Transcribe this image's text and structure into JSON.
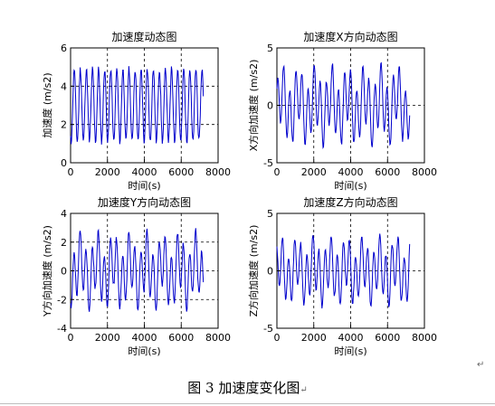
{
  "figure": {
    "caption": "图 3  加速度变化图",
    "caption_mark": "↵",
    "para_mark": "↵"
  },
  "chart_data": [
    {
      "type": "line",
      "title": "加速度动态图",
      "xlabel": "时间(s)",
      "ylabel": "加速度 (m/s2)",
      "xlim": [
        0,
        8000
      ],
      "ylim": [
        0,
        6
      ],
      "xticks": [
        0,
        2000,
        4000,
        6000,
        8000
      ],
      "yticks": [
        0,
        2,
        4,
        6
      ],
      "grid": "dashed",
      "line_color": "#0000cc",
      "x_end": 7200,
      "period": 330,
      "offset": 3.0,
      "wave": [
        1.9,
        0.0
      ],
      "samples_per_period": 12,
      "seed": 11
    },
    {
      "type": "line",
      "title": "加速度X方向动态图",
      "xlabel": "时间(s)",
      "ylabel": "X方向加速度 (m/s2)",
      "xlim": [
        0,
        8000
      ],
      "ylim": [
        -5,
        5
      ],
      "xticks": [
        0,
        2000,
        4000,
        6000,
        8000
      ],
      "yticks": [
        -5,
        0,
        5
      ],
      "grid": "dashed",
      "line_color": "#0000cc",
      "x_end": 7200,
      "period": 330,
      "offset": 0.0,
      "wave": [
        2.5,
        1.2
      ],
      "samples_per_period": 12,
      "seed": 23
    },
    {
      "type": "line",
      "title": "加速度Y方向动态图",
      "xlabel": "时间(s)",
      "ylabel": "Y方向加速度 (m/s2)",
      "xlim": [
        0,
        8000
      ],
      "ylim": [
        -4,
        4
      ],
      "xticks": [
        0,
        2000,
        4000,
        6000,
        8000
      ],
      "yticks": [
        -4,
        -2,
        0,
        2,
        4
      ],
      "grid": "dashed",
      "line_color": "#0000cc",
      "x_end": 7200,
      "period": 330,
      "offset": 0.0,
      "wave": [
        1.9,
        0.9
      ],
      "samples_per_period": 12,
      "seed": 37
    },
    {
      "type": "line",
      "title": "加速度Z方向动态图",
      "xlabel": "时间(s)",
      "ylabel": "Z方向加速度 (m/s2)",
      "xlim": [
        0,
        8000
      ],
      "ylim": [
        -5,
        5
      ],
      "xticks": [
        0,
        2000,
        4000,
        6000,
        8000
      ],
      "yticks": [
        -5,
        0,
        5
      ],
      "grid": "dashed",
      "line_color": "#0000cc",
      "x_end": 7200,
      "period": 330,
      "offset": 0.0,
      "wave": [
        2.2,
        1.0
      ],
      "samples_per_period": 12,
      "seed": 53
    }
  ]
}
